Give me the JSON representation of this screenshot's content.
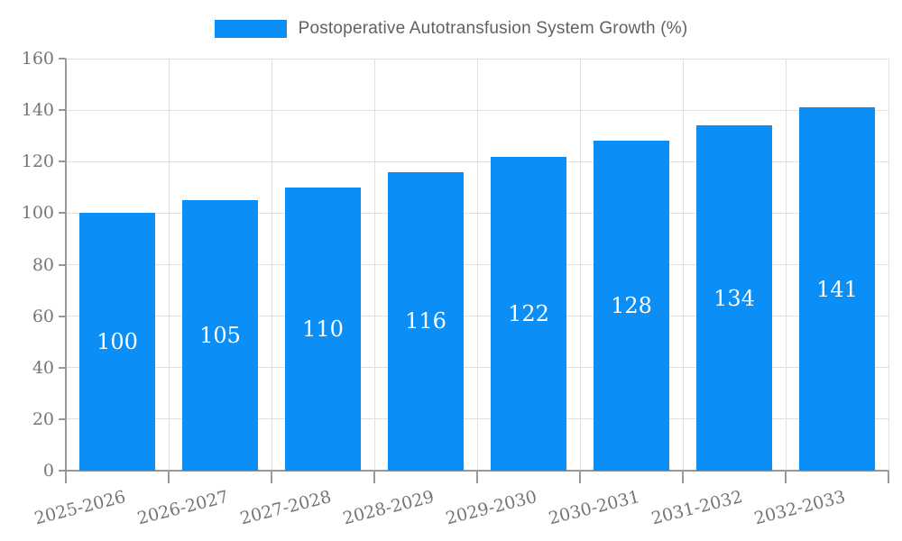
{
  "legend": {
    "label": "Postoperative Autotransfusion System Growth (%)"
  },
  "chart_data": {
    "type": "bar",
    "title": "Postoperative Autotransfusion System Growth (%)",
    "categories": [
      "2025-2026",
      "2026-2027",
      "2027-2028",
      "2028-2029",
      "2029-2030",
      "2030-2031",
      "2031-2032",
      "2032-2033"
    ],
    "values": [
      100,
      105,
      110,
      116,
      122,
      128,
      134,
      141
    ],
    "xlabel": "",
    "ylabel": "",
    "ylim": [
      0,
      160
    ],
    "yticks": [
      0,
      20,
      40,
      60,
      80,
      100,
      120,
      140,
      160
    ],
    "grid": true,
    "legend_position": "top-center",
    "value_labels": "inside-center",
    "colors": {
      "bar": "#0b8ff7",
      "value_label": "#ffffff",
      "grid_line": "#e0e0e0",
      "axis_line": "#999999",
      "tick_text": "#757575",
      "legend_text": "#616161"
    }
  }
}
